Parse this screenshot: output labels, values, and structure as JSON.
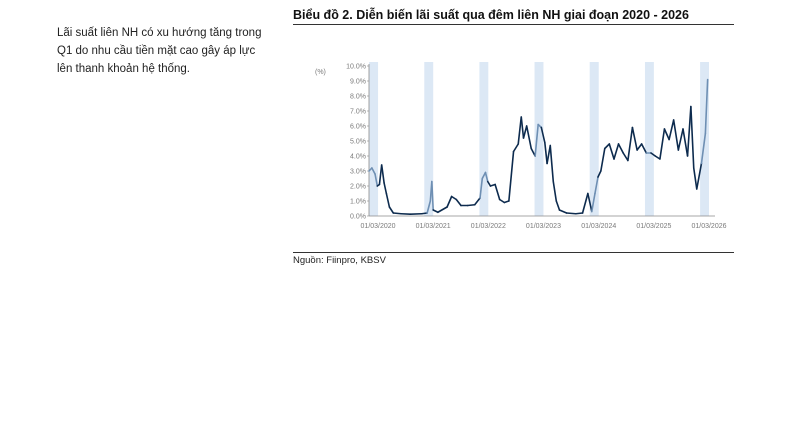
{
  "side_note": {
    "text": "Lãi suất liên NH có xu hướng tăng trong Q1 do nhu cầu tiền mặt cao gây áp lực lên thanh khoản hệ thống."
  },
  "chart_data": {
    "type": "line",
    "title": "Biểu đồ 2. Diễn biến lãi suất qua đêm liên NH giai đoạn 2020 - 2026",
    "ylabel": "(%)",
    "ylim": [
      0,
      10
    ],
    "y_ticks": [
      "0.0%",
      "1.0%",
      "2.0%",
      "3.0%",
      "4.0%",
      "5.0%",
      "6.0%",
      "7.0%",
      "8.0%",
      "9.0%",
      "10.0%"
    ],
    "x_ticks": [
      "01/03/2020",
      "01/03/2021",
      "01/03/2022",
      "01/03/2023",
      "01/03/2024",
      "01/03/2025",
      "01/03/2026"
    ],
    "shaded_periods": [
      [
        "2020-01",
        "2020-03"
      ],
      [
        "2021-01",
        "2021-03"
      ],
      [
        "2022-01",
        "2022-03"
      ],
      [
        "2023-01",
        "2023-03"
      ],
      [
        "2024-01",
        "2024-03"
      ],
      [
        "2025-01",
        "2025-03"
      ],
      [
        "2026-01",
        "2026-03"
      ]
    ],
    "series": [
      {
        "color": "#0d2b4e",
        "highlight_color": "#6e8fb3",
        "points": [
          [
            "2020-01-01",
            3.0
          ],
          [
            "2020-01-20",
            3.2
          ],
          [
            "2020-02-10",
            2.8
          ],
          [
            "2020-02-25",
            2.0
          ],
          [
            "2020-03-10",
            2.1
          ],
          [
            "2020-03-25",
            3.4
          ],
          [
            "2020-04-10",
            2.2
          ],
          [
            "2020-04-25",
            1.5
          ],
          [
            "2020-05-15",
            0.6
          ],
          [
            "2020-06-10",
            0.2
          ],
          [
            "2020-08-01",
            0.15
          ],
          [
            "2020-10-01",
            0.12
          ],
          [
            "2020-12-15",
            0.15
          ],
          [
            "2021-01-20",
            0.2
          ],
          [
            "2021-02-10",
            1.0
          ],
          [
            "2021-02-20",
            2.3
          ],
          [
            "2021-03-01",
            0.4
          ],
          [
            "2021-04-01",
            0.25
          ],
          [
            "2021-06-01",
            0.6
          ],
          [
            "2021-07-01",
            1.3
          ],
          [
            "2021-08-01",
            1.1
          ],
          [
            "2021-09-01",
            0.7
          ],
          [
            "2021-10-15",
            0.7
          ],
          [
            "2021-12-01",
            0.75
          ],
          [
            "2022-01-05",
            1.2
          ],
          [
            "2022-01-20",
            2.5
          ],
          [
            "2022-02-10",
            2.9
          ],
          [
            "2022-02-25",
            2.3
          ],
          [
            "2022-03-15",
            2.0
          ],
          [
            "2022-04-15",
            2.1
          ],
          [
            "2022-05-15",
            1.1
          ],
          [
            "2022-06-15",
            0.9
          ],
          [
            "2022-07-15",
            1.0
          ],
          [
            "2022-08-15",
            4.3
          ],
          [
            "2022-09-15",
            4.8
          ],
          [
            "2022-10-05",
            6.6
          ],
          [
            "2022-10-20",
            5.2
          ],
          [
            "2022-11-10",
            6.0
          ],
          [
            "2022-12-10",
            4.5
          ],
          [
            "2023-01-05",
            4.0
          ],
          [
            "2023-01-25",
            6.1
          ],
          [
            "2023-02-15",
            5.9
          ],
          [
            "2023-03-10",
            4.9
          ],
          [
            "2023-03-25",
            3.5
          ],
          [
            "2023-04-15",
            4.7
          ],
          [
            "2023-05-05",
            2.3
          ],
          [
            "2023-05-25",
            1.0
          ],
          [
            "2023-06-15",
            0.4
          ],
          [
            "2023-08-01",
            0.2
          ],
          [
            "2023-10-01",
            0.15
          ],
          [
            "2023-11-15",
            0.2
          ],
          [
            "2023-12-20",
            1.5
          ],
          [
            "2024-01-15",
            0.3
          ],
          [
            "2024-02-05",
            1.5
          ],
          [
            "2024-02-25",
            2.6
          ],
          [
            "2024-03-15",
            3.0
          ],
          [
            "2024-04-10",
            4.5
          ],
          [
            "2024-05-10",
            4.8
          ],
          [
            "2024-06-10",
            3.8
          ],
          [
            "2024-07-10",
            4.8
          ],
          [
            "2024-08-10",
            4.2
          ],
          [
            "2024-09-10",
            3.7
          ],
          [
            "2024-10-10",
            5.9
          ],
          [
            "2024-11-10",
            4.4
          ],
          [
            "2024-12-10",
            4.8
          ],
          [
            "2025-01-10",
            4.2
          ],
          [
            "2025-02-10",
            4.2
          ],
          [
            "2025-03-10",
            4.0
          ],
          [
            "2025-04-10",
            3.8
          ],
          [
            "2025-05-10",
            5.8
          ],
          [
            "2025-06-10",
            5.1
          ],
          [
            "2025-07-10",
            6.4
          ],
          [
            "2025-08-10",
            4.4
          ],
          [
            "2025-09-10",
            5.8
          ],
          [
            "2025-10-10",
            4.0
          ],
          [
            "2025-11-01",
            7.3
          ],
          [
            "2025-11-20",
            3.2
          ],
          [
            "2025-12-10",
            1.8
          ],
          [
            "2026-01-10",
            3.5
          ],
          [
            "2026-02-05",
            5.5
          ],
          [
            "2026-02-20",
            9.1
          ]
        ]
      }
    ]
  },
  "source": {
    "text": "Nguồn: Fiinpro, KBSV"
  },
  "colors": {
    "line": "#0d2b4e",
    "line_in_shaded": "#6e8fb3",
    "shade": "#dce8f5",
    "axis": "#8a8a8a"
  }
}
